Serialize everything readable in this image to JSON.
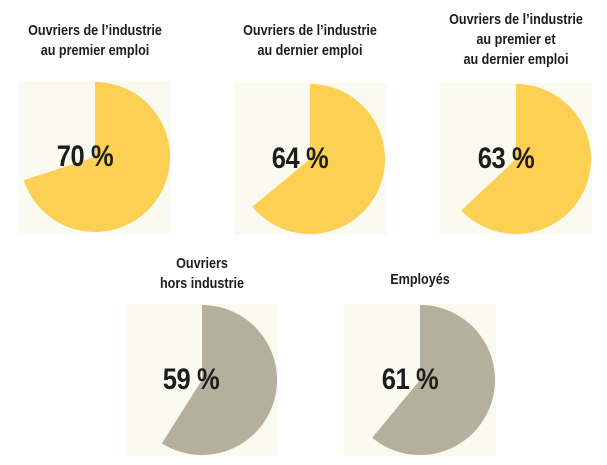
{
  "page": {
    "background": "#FFFFFF",
    "panel_background": "#FBFAF1",
    "text_color": "#1D1D1B"
  },
  "chart_data": {
    "type": "pie",
    "unit": "%",
    "start_angle": "12 o'clock",
    "direction": "clockwise",
    "legend": "none",
    "colors": {
      "industry_workers": "#FCD053",
      "other_groups": "#B5B09D"
    },
    "pies": [
      {
        "title": "Ouvriers de l’industrie au premier emploi",
        "title_lines": [
          "Ouvriers de l’industrie",
          "au premier emploi"
        ],
        "value": 70,
        "label": "70 %",
        "color": "#FCD053"
      },
      {
        "title": "Ouvriers de l’industrie au dernier emploi",
        "title_lines": [
          "Ouvriers de l’industrie",
          "au dernier emploi"
        ],
        "value": 64,
        "label": "64 %",
        "color": "#FCD053"
      },
      {
        "title": "Ouvriers de l’industrie au premier et au dernier emploi",
        "title_lines": [
          "Ouvriers de l’industrie",
          "au premier et",
          "au dernier emploi"
        ],
        "value": 63,
        "label": "63 %",
        "color": "#FCD053"
      },
      {
        "title": "Ouvriers hors industrie",
        "title_lines": [
          "Ouvriers",
          "hors industrie"
        ],
        "value": 59,
        "label": "59 %",
        "color": "#B5B09D"
      },
      {
        "title": "Employés",
        "title_lines": [
          "Employés"
        ],
        "value": 61,
        "label": "61 %",
        "color": "#B5B09D"
      }
    ]
  }
}
